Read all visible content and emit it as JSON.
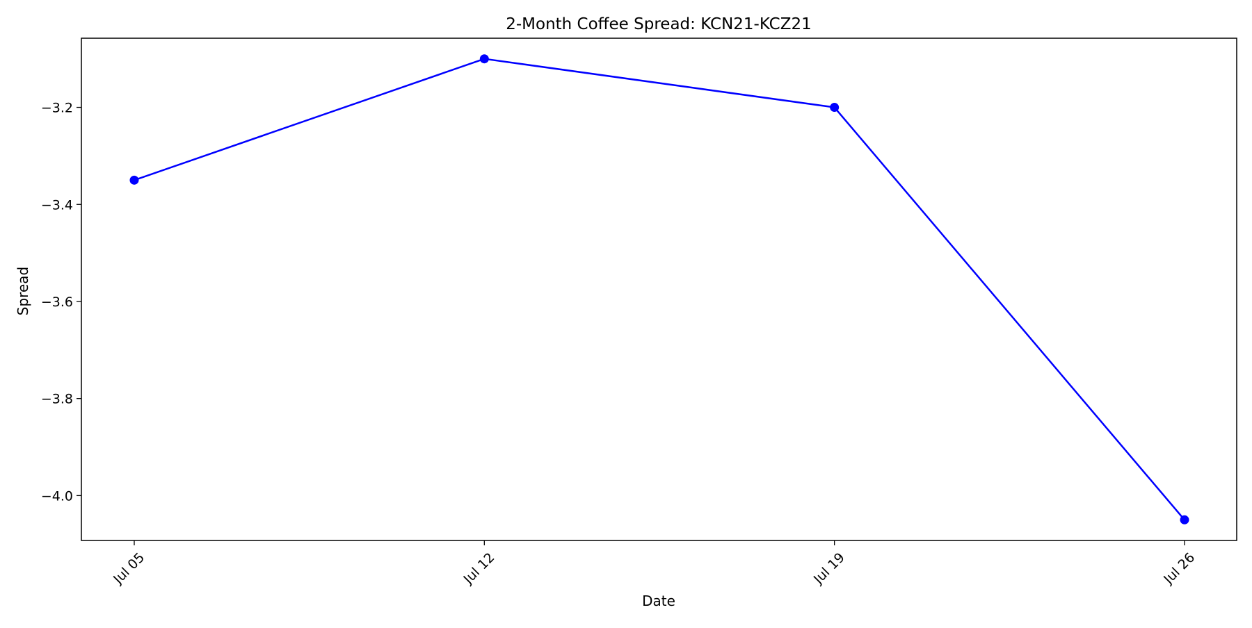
{
  "chart_data": {
    "type": "line",
    "title": "2-Month Coffee Spread: KCN21-KCZ21",
    "xlabel": "Date",
    "ylabel": "Spread",
    "x": [
      "Jul 05",
      "Jul 12",
      "Jul 19",
      "Jul 26"
    ],
    "series": [
      {
        "values": [
          -3.35,
          -3.1,
          -3.2,
          -4.05
        ],
        "color": "#0000ff",
        "marker": "circle"
      }
    ],
    "x_ticks": [
      "Jul 05",
      "Jul 12",
      "Jul 19",
      "Jul 26"
    ],
    "y_ticks": [
      -3.2,
      -3.4,
      -3.6,
      -3.8,
      -4.0
    ],
    "y_tick_labels": [
      "−3.2",
      "−3.4",
      "−3.6",
      "−3.8",
      "−4.0"
    ],
    "ylim": [
      -4.0925,
      -3.0575
    ],
    "grid": false,
    "legend": "none"
  }
}
